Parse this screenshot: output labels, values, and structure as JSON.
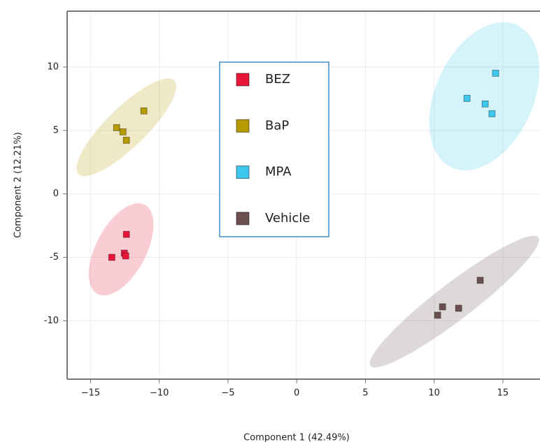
{
  "chart_data": {
    "type": "scatter",
    "x_label": "Component 1 (42.49%)",
    "y_label": "Component 2 (12.21%)",
    "xlim": [
      -16.7,
      17.7
    ],
    "ylim": [
      -14.6,
      14.4
    ],
    "xticks": [
      {
        "value": -15,
        "label": "−15"
      },
      {
        "value": -10,
        "label": "−10"
      },
      {
        "value": -5,
        "label": "−5"
      },
      0,
      5,
      10,
      15
    ],
    "yticks": [
      -10,
      -5,
      0,
      5,
      10
    ],
    "grid": true,
    "series": [
      {
        "name": "BEZ",
        "color": "#e8173a",
        "x": [
          -13.45,
          -12.54,
          -12.44,
          -12.39
        ],
        "y": [
          -5.0,
          -4.67,
          -4.89,
          -3.19
        ],
        "ellipse": {
          "center": [
            -12.77,
            -4.37
          ],
          "radii": [
            3.91,
            1.85
          ],
          "angle": 65
        }
      },
      {
        "name": "BaP",
        "color": "#b59a00",
        "x": [
          -13.1,
          -12.64,
          -12.39,
          -11.12
        ],
        "y": [
          5.22,
          4.89,
          4.23,
          6.54
        ],
        "ellipse": {
          "center": [
            -12.39,
            5.25
          ],
          "radii": [
            5.07,
            1.5
          ],
          "angle": 47
        }
      },
      {
        "name": "MPA",
        "color": "#3cc8ee",
        "x": [
          12.39,
          13.71,
          14.21,
          14.47
        ],
        "y": [
          7.53,
          7.09,
          6.32,
          9.51
        ],
        "ellipse": {
          "center": [
            13.65,
            7.69
          ],
          "radii": [
            6.1,
            3.6
          ],
          "angle": 69
        }
      },
      {
        "name": "Vehicle",
        "color": "#6b5050",
        "x": [
          10.25,
          10.61,
          11.78,
          13.35
        ],
        "y": [
          -9.56,
          -8.9,
          -9.01,
          -6.81
        ],
        "ellipse": {
          "center": [
            11.47,
            -8.49
          ],
          "radii": [
            7.93,
            1.4
          ],
          "angle": 39.8
        }
      }
    ]
  }
}
